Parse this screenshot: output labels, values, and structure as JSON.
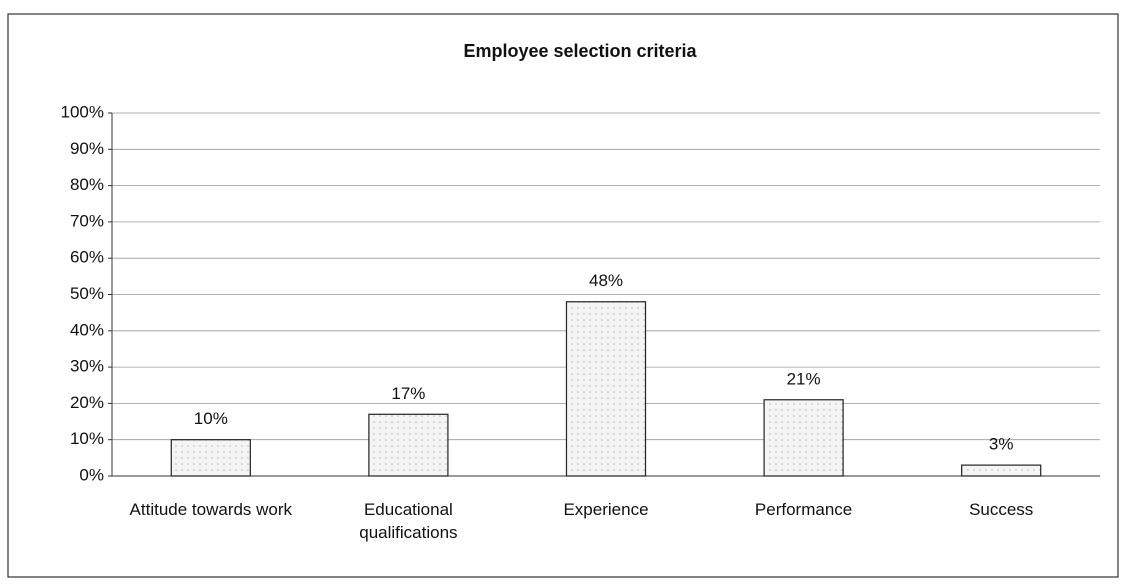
{
  "chart_data": {
    "type": "bar",
    "title": "Employee selection criteria",
    "categories": [
      "Attitude towards work",
      "Educational qualifications",
      "Experience",
      "Performance",
      "Success"
    ],
    "values": [
      10,
      17,
      48,
      21,
      3
    ],
    "value_labels": [
      "10%",
      "17%",
      "48%",
      "21%",
      "3%"
    ],
    "color": "#eeeeee",
    "ylim": [
      0,
      100
    ],
    "yticks": [
      {
        "value": 0,
        "label": "0%"
      },
      {
        "value": 10,
        "label": "10%"
      },
      {
        "value": 20,
        "label": "20%"
      },
      {
        "value": 30,
        "label": "30%"
      },
      {
        "value": 40,
        "label": "40%"
      },
      {
        "value": 50,
        "label": "50%"
      },
      {
        "value": 60,
        "label": "60%"
      },
      {
        "value": 70,
        "label": "70%"
      },
      {
        "value": 80,
        "label": "80%"
      },
      {
        "value": 90,
        "label": "90%"
      },
      {
        "value": 100,
        "label": "100%"
      }
    ],
    "grid": true
  }
}
